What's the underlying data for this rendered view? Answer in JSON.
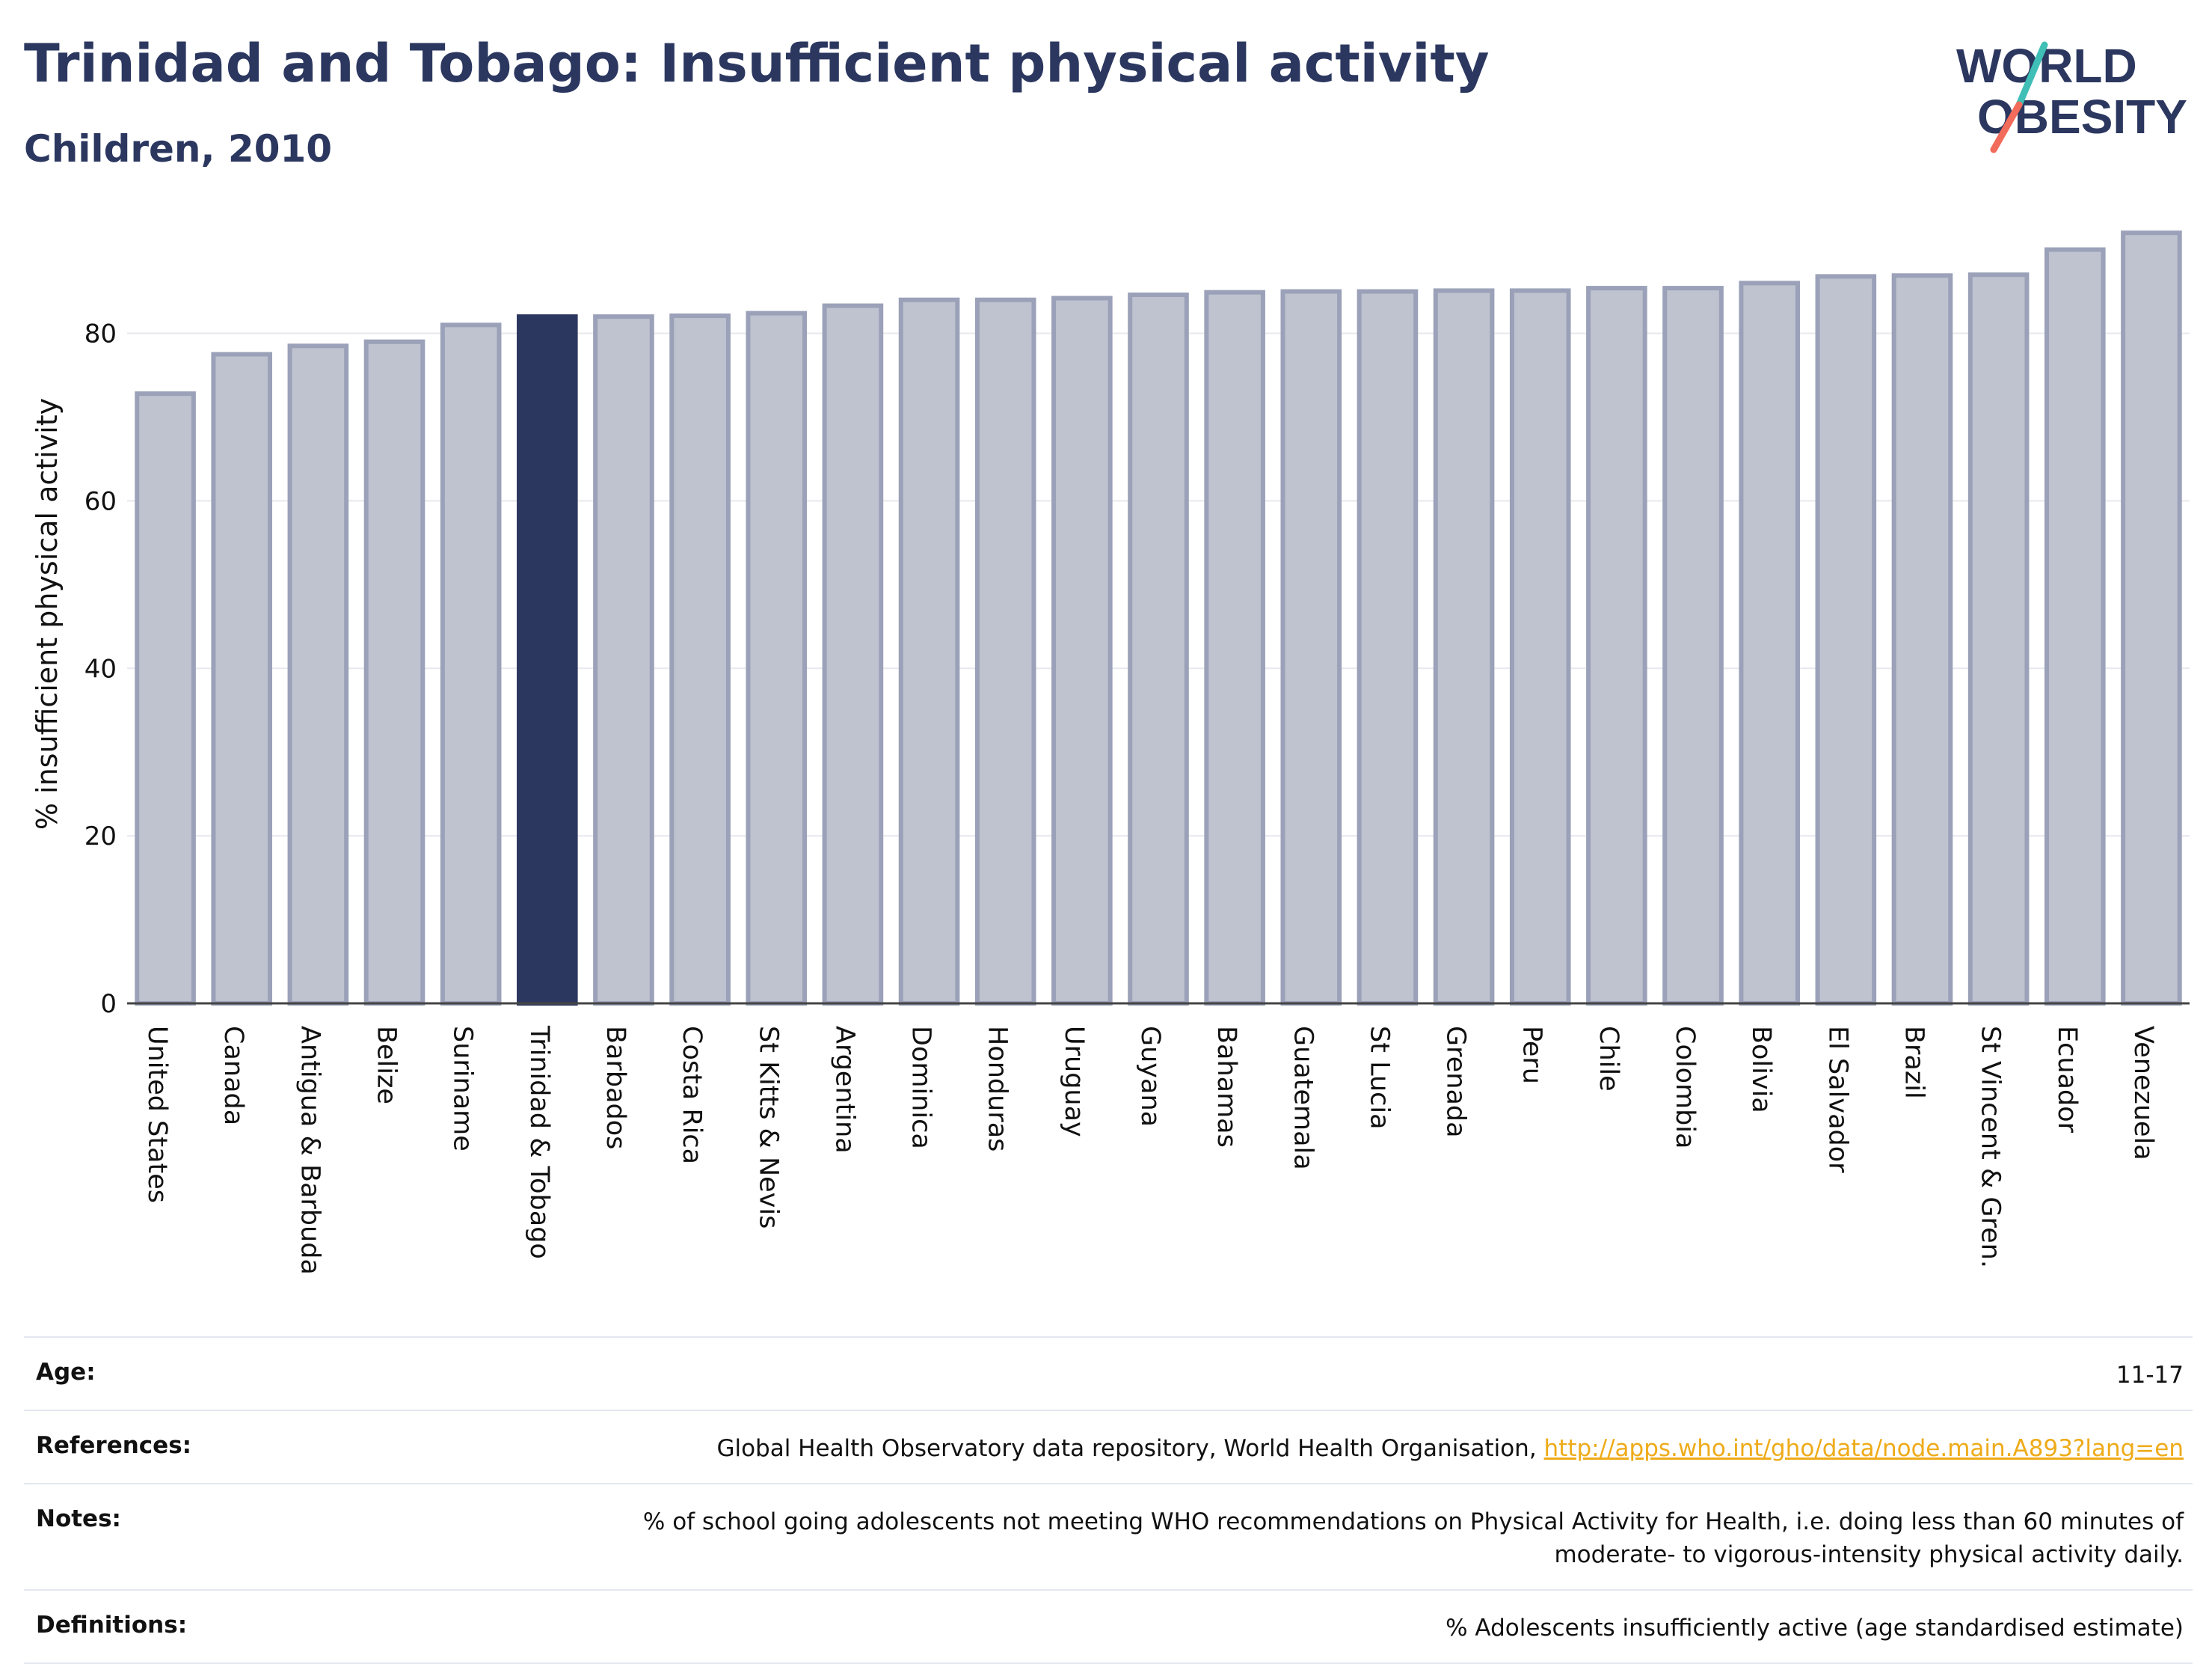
{
  "header": {
    "title": "Trinidad and Tobago: Insufficient physical activity",
    "subtitle": "Children, 2010"
  },
  "logo": {
    "line1": "WORLD",
    "line2": "OBESITY",
    "colors": {
      "text": "#2b375f",
      "slash_teal": "#3fbfb6",
      "slash_coral": "#f26b5b"
    }
  },
  "chart_data": {
    "type": "bar",
    "title": "Trinidad and Tobago: Insufficient physical activity",
    "subtitle": "Children, 2010",
    "xlabel": "",
    "ylabel": "% insufficient physical activity",
    "ylim": [
      0,
      93
    ],
    "yticks": [
      0,
      20,
      40,
      60,
      80
    ],
    "grid": true,
    "highlight": "Trinidad & Tobago",
    "colors": {
      "default": "#bfc3cf",
      "default_border": "#9aa1b8",
      "highlight": "#2b375f"
    },
    "categories": [
      "United States",
      "Canada",
      "Antigua & Barbuda",
      "Belize",
      "Suriname",
      "Trinidad & Tobago",
      "Barbados",
      "Costa Rica",
      "St Kitts & Nevis",
      "Argentina",
      "Dominica",
      "Honduras",
      "Uruguay",
      "Guyana",
      "Bahamas",
      "Guatemala",
      "St Lucia",
      "Grenada",
      "Peru",
      "Chile",
      "Colombia",
      "Bolivia",
      "El Salvador",
      "Brazil",
      "St Vincent & Gren.",
      "Ecuador",
      "Venezuela"
    ],
    "values": [
      72.8,
      77.5,
      78.5,
      79.0,
      81.0,
      82.0,
      82.0,
      82.1,
      82.4,
      83.3,
      84.0,
      84.0,
      84.2,
      84.6,
      84.9,
      85.0,
      85.0,
      85.1,
      85.1,
      85.4,
      85.4,
      86.0,
      86.8,
      86.9,
      87.0,
      90.0,
      92.0
    ]
  },
  "info": {
    "age_label": "Age:",
    "age_value": "11-17",
    "references_label": "References:",
    "references_text": "Global Health Observatory data repository, World Health Organisation, ",
    "references_link": "http://apps.who.int/gho/data/node.main.A893?lang=en",
    "notes_label": "Notes:",
    "notes_line1": "% of school going adolescents not meeting WHO recommendations on Physical Activity for Health, i.e. doing less than 60 minutes of",
    "notes_line2": "moderate- to vigorous-intensity physical activity daily.",
    "definitions_label": "Definitions:",
    "definitions_value": "% Adolescents insufficiently active (age standardised estimate)"
  }
}
